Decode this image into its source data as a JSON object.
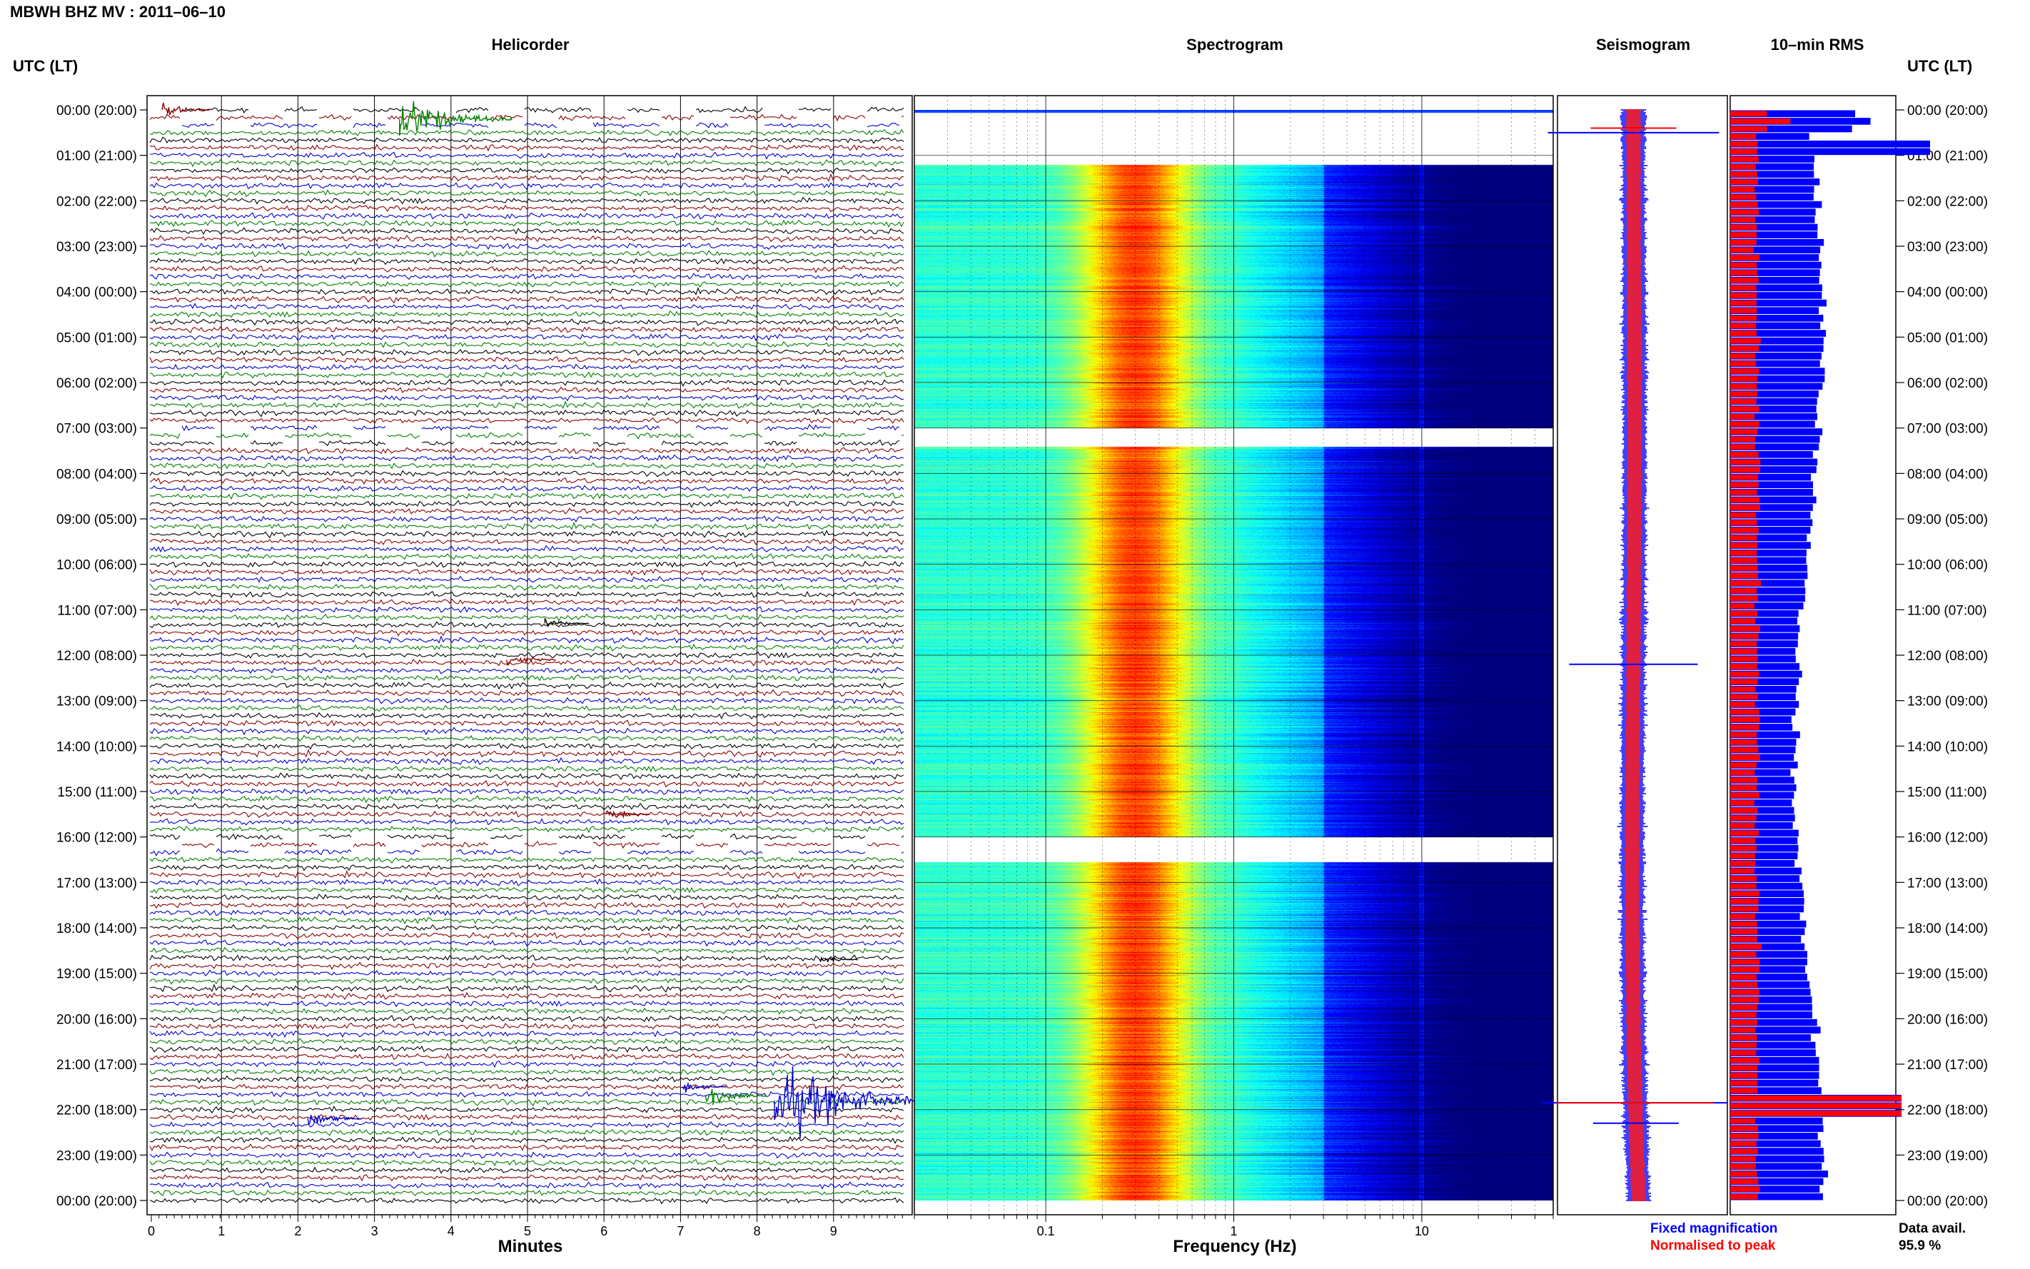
{
  "header": {
    "station_title": "MBWH BHZ MV : 2011–06–10"
  },
  "panels": {
    "helicorder": "Helicorder",
    "spectrogram": "Spectrogram",
    "seismogram": "Seismogram",
    "rms": "10–min RMS"
  },
  "axis_labels": {
    "time_left": "UTC (LT)",
    "time_right": "UTC (LT)",
    "minutes": "Minutes",
    "frequency": "Frequency (Hz)"
  },
  "legend": {
    "fixed": "Fixed magnification",
    "normalised": "Normalised to peak",
    "data_avail_label": "Data avail.",
    "data_avail_value": "95.9 %"
  },
  "colors": {
    "trace_black": "#000000",
    "trace_red": "#8b0000",
    "trace_blue": "#0000cc",
    "trace_green": "#008000",
    "fixed_blue": "#0000ff",
    "normalised_red": "#ff0000"
  },
  "chart_data": [
    {
      "type": "line",
      "title": "Helicorder",
      "xlabel": "Minutes",
      "ylabel": "UTC (LT)",
      "x_ticks": [
        "0",
        "1",
        "2",
        "3",
        "4",
        "5",
        "6",
        "7",
        "8",
        "9"
      ],
      "xlim": [
        0,
        10
      ],
      "y_ticks": [
        "00:00 (20:00)",
        "01:00 (21:00)",
        "02:00 (22:00)",
        "03:00 (23:00)",
        "04:00 (00:00)",
        "05:00 (01:00)",
        "06:00 (02:00)",
        "07:00 (03:00)",
        "08:00 (04:00)",
        "09:00 (05:00)",
        "10:00 (06:00)",
        "11:00 (07:00)",
        "12:00 (08:00)",
        "13:00 (09:00)",
        "14:00 (10:00)",
        "15:00 (11:00)",
        "16:00 (12:00)",
        "17:00 (13:00)",
        "18:00 (14:00)",
        "19:00 (15:00)",
        "20:00 (16:00)",
        "21:00 (17:00)",
        "22:00 (18:00)",
        "23:00 (19:00)",
        "00:00 (20:00)"
      ],
      "rows_per_hour": 6,
      "trace_colors": [
        "black",
        "red",
        "blue",
        "green"
      ],
      "events": [
        {
          "hour": 0.0,
          "minute": 0.2,
          "color": "red",
          "size": 0.5
        },
        {
          "hour": 0.2,
          "minute": 3.3,
          "color": "green",
          "size": 1.6
        },
        {
          "hour": 11.3,
          "minute": 5.2,
          "color": "black",
          "size": 0.4
        },
        {
          "hour": 12.1,
          "minute": 4.7,
          "color": "red",
          "size": 0.5
        },
        {
          "hour": 15.5,
          "minute": 6.0,
          "color": "red",
          "size": 0.4
        },
        {
          "hour": 18.7,
          "minute": 8.8,
          "color": "black",
          "size": 0.3
        },
        {
          "hour": 21.5,
          "minute": 7.0,
          "color": "blue",
          "size": 0.4
        },
        {
          "hour": 21.7,
          "minute": 7.3,
          "color": "green",
          "size": 0.7
        },
        {
          "hour": 21.8,
          "minute": 8.2,
          "color": "blue",
          "size": 2.5
        },
        {
          "hour": 22.2,
          "minute": 2.1,
          "color": "blue",
          "size": 0.6
        }
      ],
      "gaps_hours": [
        0.0,
        7.0,
        16.0
      ]
    },
    {
      "type": "heatmap",
      "title": "Spectrogram",
      "xlabel": "Frequency (Hz)",
      "x_scale": "log",
      "x_ticks": [
        "0.1",
        "1",
        "10"
      ],
      "xlim": [
        0.02,
        50
      ],
      "peak_band_hz": [
        0.2,
        0.5
      ],
      "notch_hz": 10,
      "gaps_hours": [
        0.1,
        7.0,
        16.0
      ]
    },
    {
      "type": "line",
      "title": "Seismogram",
      "series": [
        {
          "name": "Fixed magnification",
          "color": "blue"
        },
        {
          "name": "Normalised to peak",
          "color": "red"
        }
      ]
    },
    {
      "type": "bar",
      "title": "10–min RMS",
      "orientation": "horizontal",
      "series": [
        {
          "name": "Fixed magnification",
          "color": "blue"
        },
        {
          "name": "Normalised to peak",
          "color": "red"
        }
      ],
      "data_availability_percent": 95.9
    }
  ]
}
